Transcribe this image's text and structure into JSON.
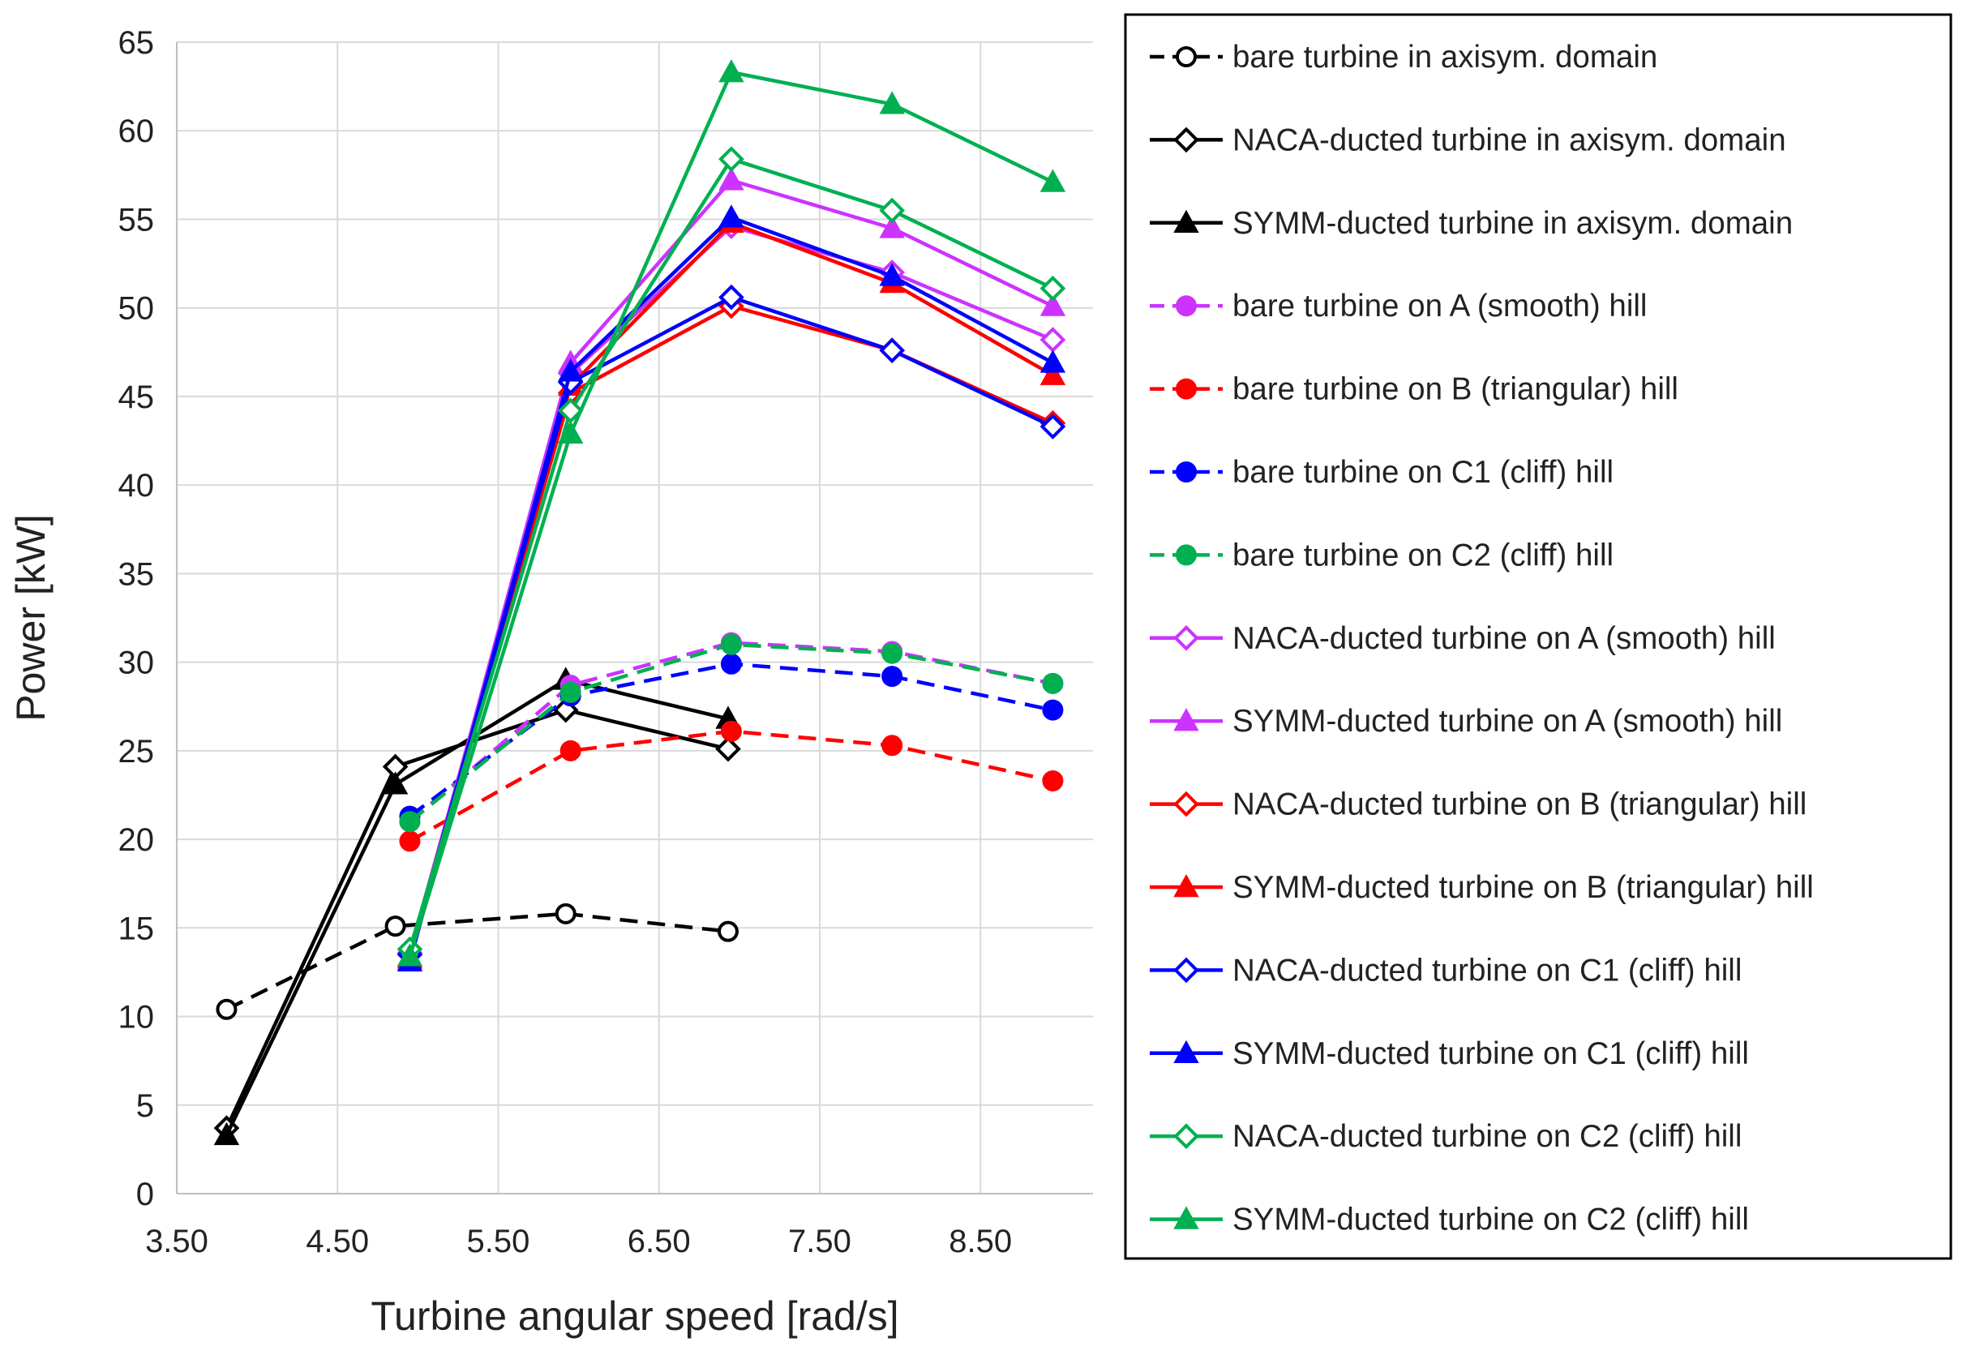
{
  "chart_data": {
    "type": "line",
    "title": "",
    "xlabel": "Turbine angular speed [rad/s]",
    "ylabel": "Power [kW]",
    "xlim": [
      3.5,
      9.2
    ],
    "ylim": [
      0,
      65
    ],
    "x_ticks": [
      3.5,
      4.5,
      5.5,
      6.5,
      7.5,
      8.5
    ],
    "x_tick_labels": [
      "3.50",
      "4.50",
      "5.50",
      "6.50",
      "7.50",
      "8.50"
    ],
    "y_ticks": [
      0,
      5,
      10,
      15,
      20,
      25,
      30,
      35,
      40,
      45,
      50,
      55,
      60,
      65
    ],
    "y_tick_labels": [
      "0",
      "5",
      "10",
      "15",
      "20",
      "25",
      "30",
      "35",
      "40",
      "45",
      "50",
      "55",
      "60",
      "65"
    ],
    "grid": "vertical and horizontal",
    "legend_position": "right",
    "series": [
      {
        "name": "bare turbine in axisym. domain",
        "color": "#000000",
        "dash": true,
        "marker": "circle-open",
        "x": [
          3.81,
          4.86,
          5.92,
          6.93
        ],
        "y": [
          10.4,
          15.1,
          15.8,
          14.8
        ]
      },
      {
        "name": "NACA-ducted turbine in axisym. domain",
        "color": "#000000",
        "dash": false,
        "marker": "diamond-open",
        "x": [
          3.81,
          4.86,
          5.92,
          6.93
        ],
        "y": [
          3.7,
          24.1,
          27.3,
          25.1
        ]
      },
      {
        "name": "SYMM-ducted turbine in axisym. domain",
        "color": "#000000",
        "dash": false,
        "marker": "triangle",
        "x": [
          3.81,
          4.86,
          5.92,
          6.93
        ],
        "y": [
          3.3,
          23.1,
          29.0,
          26.8
        ]
      },
      {
        "name": "bare turbine on A (smooth) hill",
        "color": "#cc33ff",
        "dash": true,
        "marker": "circle",
        "x": [
          4.95,
          5.95,
          6.95,
          7.95,
          8.95
        ],
        "y": [
          21.0,
          28.7,
          31.1,
          30.6,
          28.8
        ]
      },
      {
        "name": "bare turbine on B (triangular) hill",
        "color": "#ff0000",
        "dash": true,
        "marker": "circle",
        "x": [
          4.95,
          5.95,
          6.95,
          7.95,
          8.95
        ],
        "y": [
          19.9,
          25.0,
          26.1,
          25.3,
          23.3
        ]
      },
      {
        "name": "bare turbine on C1 (cliff) hill",
        "color": "#0000ff",
        "dash": true,
        "marker": "circle",
        "x": [
          4.95,
          5.95,
          6.95,
          7.95,
          8.95
        ],
        "y": [
          21.3,
          28.1,
          29.9,
          29.2,
          27.3
        ]
      },
      {
        "name": "bare turbine on C2 (cliff) hill",
        "color": "#00b050",
        "dash": true,
        "marker": "circle",
        "x": [
          4.95,
          5.95,
          6.95,
          7.95,
          8.95
        ],
        "y": [
          21.0,
          28.3,
          31.0,
          30.5,
          28.8
        ]
      },
      {
        "name": "NACA-ducted turbine on A (smooth) hill",
        "color": "#cc33ff",
        "dash": false,
        "marker": "diamond-open",
        "x": [
          4.95,
          5.95,
          6.95,
          7.95,
          8.95
        ],
        "y": [
          13.6,
          46.3,
          54.6,
          52.0,
          48.2
        ]
      },
      {
        "name": "SYMM-ducted turbine on A (smooth) hill",
        "color": "#cc33ff",
        "dash": false,
        "marker": "triangle",
        "x": [
          4.95,
          5.95,
          6.95,
          7.95,
          8.95
        ],
        "y": [
          13.2,
          46.9,
          57.2,
          54.5,
          50.1
        ]
      },
      {
        "name": "NACA-ducted turbine on B (triangular) hill",
        "color": "#ff0000",
        "dash": false,
        "marker": "diamond-open",
        "x": [
          4.95,
          5.95,
          6.95,
          7.95,
          8.95
        ],
        "y": [
          13.5,
          45.2,
          50.1,
          47.6,
          43.5
        ]
      },
      {
        "name": "SYMM-ducted turbine on B (triangular) hill",
        "color": "#ff0000",
        "dash": false,
        "marker": "triangle",
        "x": [
          4.95,
          5.95,
          6.95,
          7.95,
          8.95
        ],
        "y": [
          13.3,
          45.6,
          54.8,
          51.4,
          46.2
        ]
      },
      {
        "name": "NACA-ducted turbine on C1 (cliff) hill",
        "color": "#0000ff",
        "dash": false,
        "marker": "diamond-open",
        "x": [
          4.95,
          5.95,
          6.95,
          7.95,
          8.95
        ],
        "y": [
          13.5,
          45.8,
          50.6,
          47.6,
          43.3
        ]
      },
      {
        "name": "SYMM-ducted turbine on C1 (cliff) hill",
        "color": "#0000ff",
        "dash": false,
        "marker": "triangle",
        "x": [
          4.95,
          5.95,
          6.95,
          7.95,
          8.95
        ],
        "y": [
          13.1,
          46.4,
          55.1,
          51.8,
          46.9
        ]
      },
      {
        "name": "NACA-ducted turbine on C2 (cliff) hill",
        "color": "#00b050",
        "dash": false,
        "marker": "diamond-open",
        "x": [
          4.95,
          5.95,
          6.95,
          7.95,
          8.95
        ],
        "y": [
          13.8,
          44.2,
          58.4,
          55.5,
          51.1
        ]
      },
      {
        "name": "SYMM-ducted turbine on C2 (cliff) hill",
        "color": "#00b050",
        "dash": false,
        "marker": "triangle",
        "x": [
          4.95,
          5.95,
          6.95,
          7.95,
          8.95
        ],
        "y": [
          13.4,
          42.9,
          63.3,
          61.5,
          57.1
        ]
      }
    ]
  }
}
